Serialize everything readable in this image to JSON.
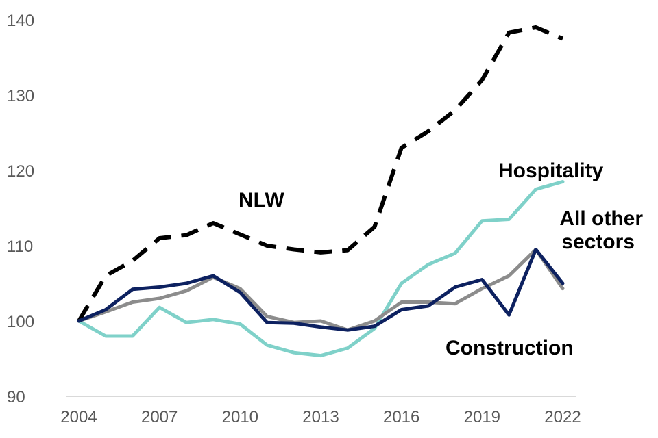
{
  "chart_data": {
    "type": "line",
    "title": "",
    "xlabel": "",
    "ylabel": "",
    "x": [
      2004,
      2005,
      2006,
      2007,
      2008,
      2009,
      2010,
      2011,
      2012,
      2013,
      2014,
      2015,
      2016,
      2017,
      2018,
      2019,
      2020,
      2021,
      2022
    ],
    "xlim": [
      2004,
      2022
    ],
    "ylim": [
      90,
      140
    ],
    "xticks": [
      "2004",
      "2007",
      "2010",
      "2013",
      "2016",
      "2019",
      "2022"
    ],
    "yticks": [
      "90",
      "100",
      "110",
      "120",
      "130",
      "140"
    ],
    "grid": false,
    "legend": "inline labels",
    "series": [
      {
        "name": "NLW",
        "color": "#000000",
        "style": "dashed",
        "values": [
          100,
          106,
          108,
          111,
          111.4,
          113,
          111.5,
          110,
          109.5,
          109.1,
          109.4,
          112.5,
          123,
          125.2,
          128,
          132,
          138.3,
          139,
          137.5
        ]
      },
      {
        "name": "Hospitality",
        "color": "#7fd1c9",
        "style": "solid",
        "values": [
          100,
          98,
          98,
          101.8,
          99.8,
          100.2,
          99.6,
          96.8,
          95.8,
          95.4,
          96.4,
          99,
          105,
          107.5,
          109,
          113.3,
          113.5,
          117.5,
          118.5
        ]
      },
      {
        "name": "All other sectors",
        "color": "#8c8c8c",
        "style": "solid",
        "values": [
          100,
          101.2,
          102.5,
          103,
          104,
          105.8,
          104.3,
          100.6,
          99.8,
          100,
          98.8,
          100,
          102.5,
          102.5,
          102.3,
          104.3,
          106,
          109.5,
          104.3
        ]
      },
      {
        "name": "Construction",
        "color": "#0d2160",
        "style": "solid",
        "values": [
          100,
          101.5,
          104.2,
          104.5,
          105,
          106,
          103.8,
          99.8,
          99.7,
          99.2,
          98.8,
          99.3,
          101.5,
          102,
          104.5,
          105.5,
          100.8,
          109.5,
          105
        ]
      }
    ],
    "annotations": [
      {
        "text": "NLW",
        "color": "#404040"
      },
      {
        "text": "Hospitality",
        "color": "#7fd1c9"
      },
      {
        "text": "All other",
        "color": "#8c8c8c"
      },
      {
        "text": "sectors",
        "color": "#8c8c8c"
      },
      {
        "text": "Construction",
        "color": "#0d2160"
      }
    ]
  }
}
